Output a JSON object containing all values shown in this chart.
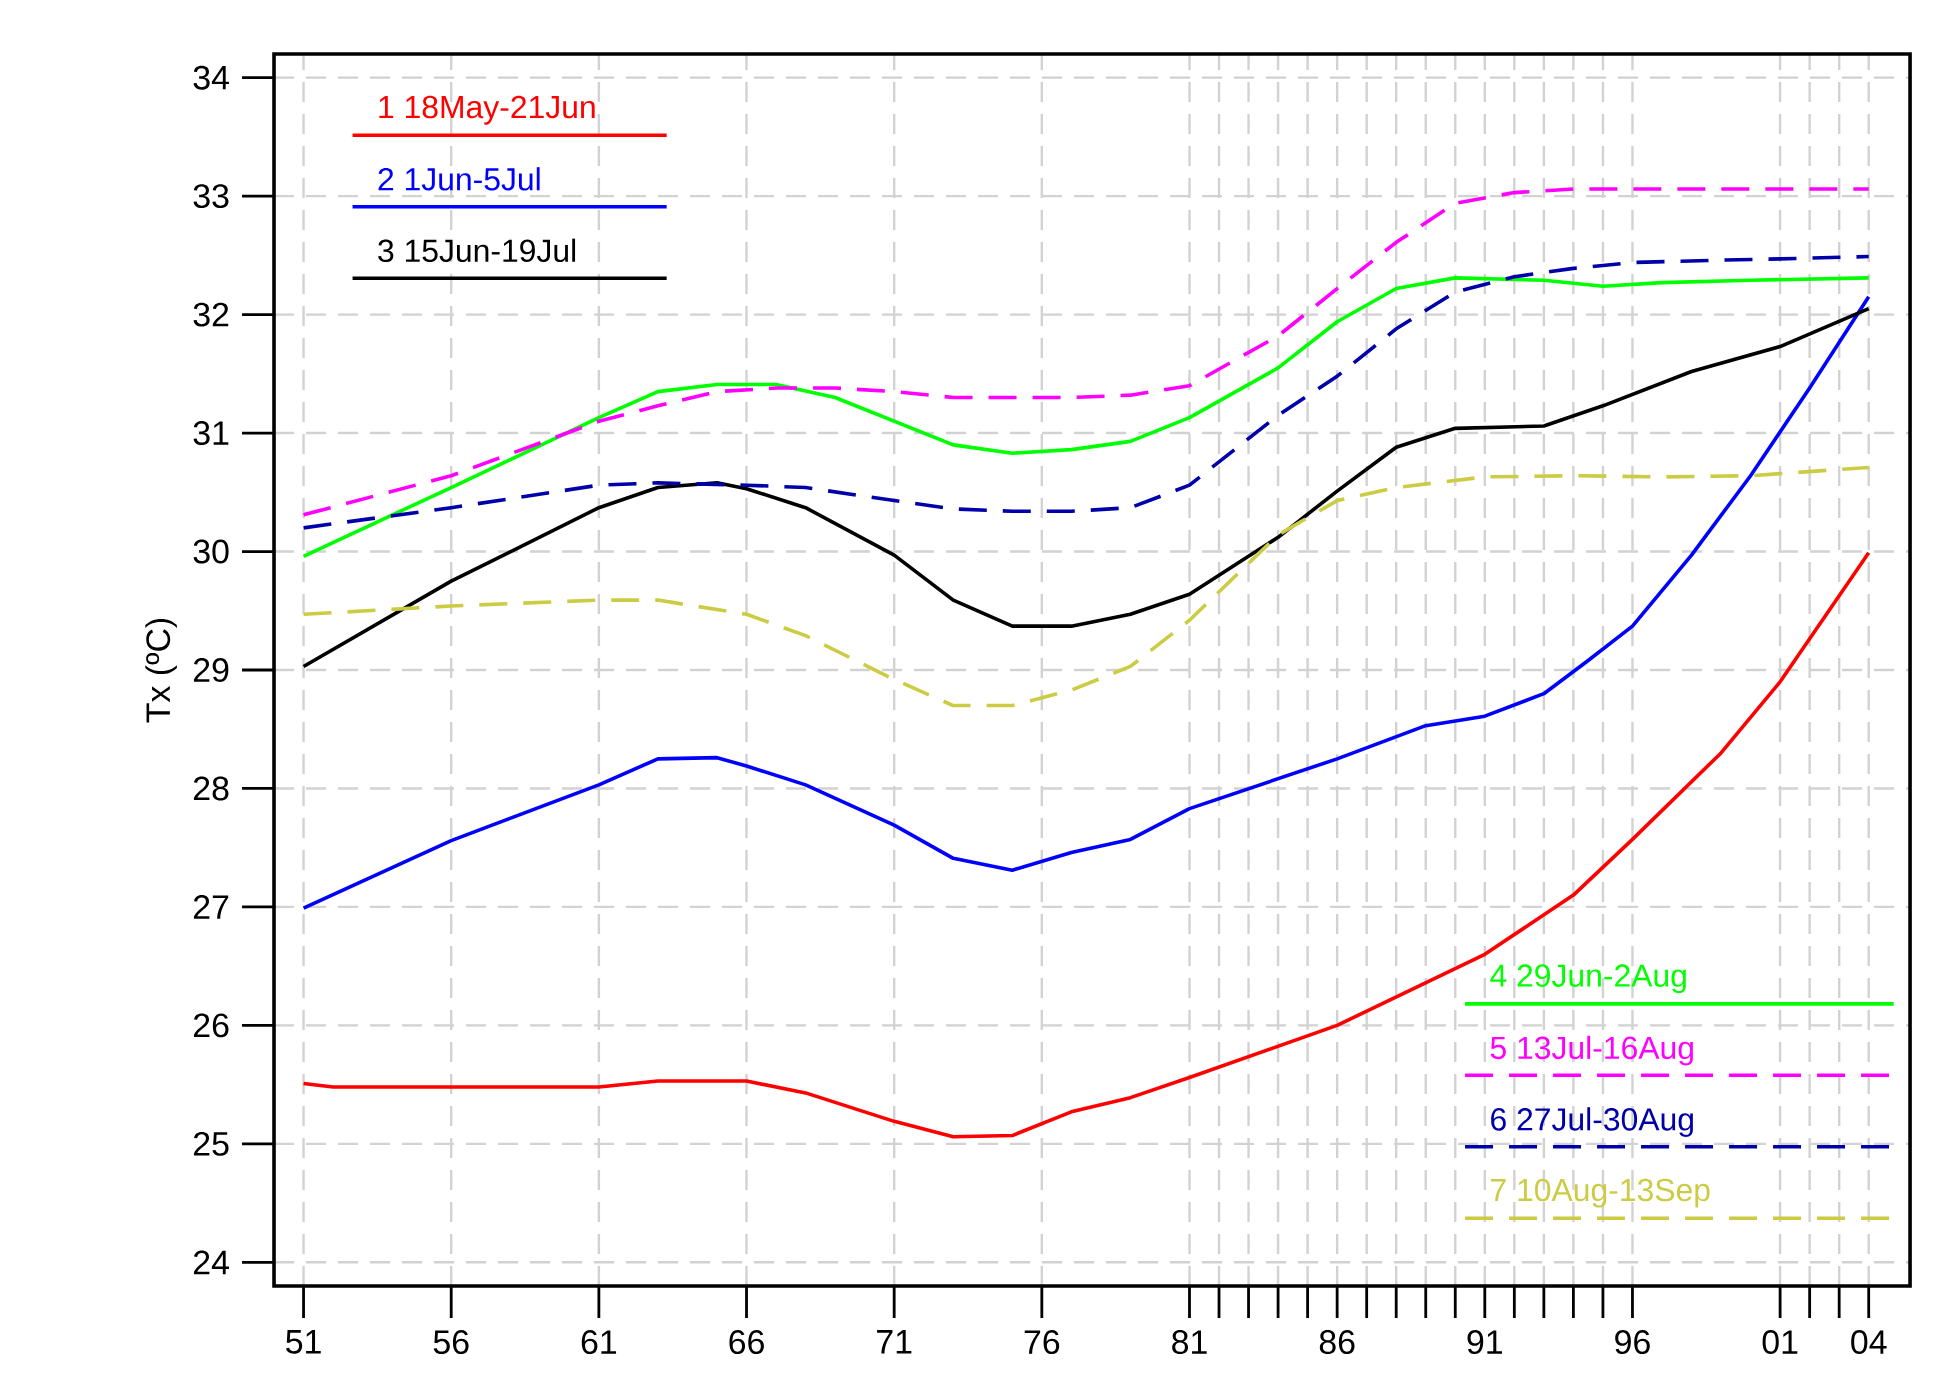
{
  "chart_data": {
    "type": "line",
    "ylabel": "Tx (ºC)",
    "x": [
      1951,
      1956,
      1961,
      1963,
      1965,
      1966,
      1968,
      1971,
      1973,
      1975,
      1977,
      1979,
      1981,
      1984,
      1986,
      1988,
      1990,
      1993,
      1995,
      1998,
      2001,
      2004
    ],
    "series": [
      {
        "name": "1 18May-21Jun",
        "color": "#ff0000",
        "line_style": "solid",
        "x": [
          1951,
          1952,
          1956,
          1961,
          1963,
          1966,
          1968,
          1971,
          1973,
          1975,
          1977,
          1979,
          1981,
          1986,
          1991,
          1994,
          1996,
          1999,
          2001,
          2004
        ],
        "values": [
          25.51,
          25.48,
          25.48,
          25.48,
          25.53,
          25.53,
          25.43,
          25.19,
          25.06,
          25.07,
          25.27,
          25.39,
          25.56,
          26.0,
          26.6,
          27.1,
          27.57,
          28.3,
          28.9,
          29.99
        ]
      },
      {
        "name": "2 1Jun-5Jul",
        "color": "#0000ff",
        "line_style": "solid",
        "x": [
          1951,
          1956,
          1961,
          1963,
          1965,
          1966,
          1968,
          1971,
          1973,
          1975,
          1977,
          1979,
          1981,
          1986,
          1989,
          1991,
          1993,
          1994.5,
          1996,
          1998,
          2000,
          2002,
          2004
        ],
        "values": [
          26.99,
          27.56,
          28.03,
          28.25,
          28.26,
          28.19,
          28.03,
          27.69,
          27.41,
          27.31,
          27.46,
          27.57,
          27.83,
          28.25,
          28.53,
          28.61,
          28.8,
          29.08,
          29.37,
          29.97,
          30.64,
          31.38,
          32.15
        ]
      },
      {
        "name": "3 15Jun-19Jul",
        "color": "#000000",
        "line_style": "solid",
        "values": [
          29.03,
          29.75,
          30.37,
          30.54,
          30.58,
          30.53,
          30.37,
          29.97,
          29.59,
          29.37,
          29.37,
          29.47,
          29.64,
          30.12,
          30.51,
          30.88,
          31.04,
          31.06,
          31.23,
          31.52,
          31.73,
          32.05
        ]
      },
      {
        "name": "4 29Jun-2Aug",
        "color": "#00ff00",
        "line_style": "solid",
        "x": [
          1951,
          1956,
          1961,
          1963,
          1965,
          1967,
          1969,
          1971,
          1973,
          1975,
          1977,
          1979,
          1981,
          1984,
          1986,
          1988,
          1990,
          1993,
          1995,
          1997,
          2000,
          2004
        ],
        "values": [
          29.96,
          30.54,
          31.13,
          31.35,
          31.41,
          31.41,
          31.3,
          31.1,
          30.9,
          30.83,
          30.86,
          30.93,
          31.13,
          31.55,
          31.94,
          32.22,
          32.31,
          32.29,
          32.24,
          32.27,
          32.29,
          32.31
        ]
      },
      {
        "name": "5 13Jul-16Aug",
        "color": "#ff00ff",
        "line_style": "dashed",
        "x": [
          1951,
          1956,
          1961,
          1963,
          1965,
          1967,
          1969,
          1971,
          1973,
          1975,
          1977,
          1979,
          1981,
          1984,
          1986,
          1988,
          1990,
          1992,
          1994,
          1997,
          2000,
          2004
        ],
        "values": [
          30.31,
          30.64,
          31.1,
          31.23,
          31.35,
          31.38,
          31.38,
          31.35,
          31.3,
          31.3,
          31.3,
          31.32,
          31.4,
          31.82,
          32.22,
          32.61,
          32.94,
          33.03,
          33.06,
          33.06,
          33.06,
          33.06
        ]
      },
      {
        "name": "6 27Jul-30Aug",
        "color": "#0000aa",
        "line_style": "dashed",
        "x": [
          1951,
          1956,
          1961,
          1963,
          1966,
          1968,
          1971,
          1973,
          1975,
          1977,
          1979,
          1981,
          1984,
          1986,
          1988,
          1990,
          1992,
          1994,
          1996,
          1999,
          2001,
          2004
        ],
        "values": [
          30.2,
          30.37,
          30.56,
          30.58,
          30.56,
          30.54,
          30.43,
          30.36,
          30.34,
          30.34,
          30.37,
          30.56,
          31.15,
          31.48,
          31.88,
          32.19,
          32.32,
          32.39,
          32.44,
          32.46,
          32.47,
          32.49
        ]
      },
      {
        "name": "7 10Aug-13Sep",
        "color": "#cccc44",
        "line_style": "dashed",
        "x": [
          1951,
          1956,
          1961,
          1963,
          1966,
          1968,
          1971,
          1973,
          1975,
          1977,
          1979,
          1981,
          1984,
          1986,
          1988,
          1991,
          1994,
          1997,
          2000,
          2004
        ],
        "values": [
          29.47,
          29.54,
          29.59,
          29.59,
          29.47,
          29.29,
          28.92,
          28.7,
          28.7,
          28.83,
          29.03,
          29.42,
          30.14,
          30.43,
          30.54,
          30.63,
          30.64,
          30.63,
          30.64,
          30.71
        ]
      }
    ],
    "xlim": [
      1950,
      2005.4
    ],
    "ylim": [
      23.8,
      34.2
    ],
    "xticks": [
      {
        "value": 1951,
        "label": "51"
      },
      {
        "value": 1956,
        "label": "56"
      },
      {
        "value": 1961,
        "label": "61"
      },
      {
        "value": 1966,
        "label": "66"
      },
      {
        "value": 1971,
        "label": "71"
      },
      {
        "value": 1976,
        "label": "76"
      },
      {
        "value": 1981,
        "label": "81"
      },
      {
        "value": 1982,
        "label": null
      },
      {
        "value": 1983,
        "label": null
      },
      {
        "value": 1984,
        "label": null
      },
      {
        "value": 1985,
        "label": null
      },
      {
        "value": 1986,
        "label": "86"
      },
      {
        "value": 1987,
        "label": null
      },
      {
        "value": 1988,
        "label": null
      },
      {
        "value": 1989,
        "label": null
      },
      {
        "value": 1990,
        "label": null
      },
      {
        "value": 1991,
        "label": "91"
      },
      {
        "value": 1992,
        "label": null
      },
      {
        "value": 1993,
        "label": null
      },
      {
        "value": 1994,
        "label": null
      },
      {
        "value": 1995,
        "label": null
      },
      {
        "value": 1996,
        "label": "96"
      },
      {
        "value": 2001,
        "label": "01"
      },
      {
        "value": 2002,
        "label": null
      },
      {
        "value": 2003,
        "label": null
      },
      {
        "value": 2004,
        "label": "04"
      }
    ],
    "yticks": [
      24,
      25,
      26,
      27,
      28,
      29,
      30,
      31,
      32,
      33,
      34
    ],
    "grid": true,
    "legend": "top left"
  }
}
